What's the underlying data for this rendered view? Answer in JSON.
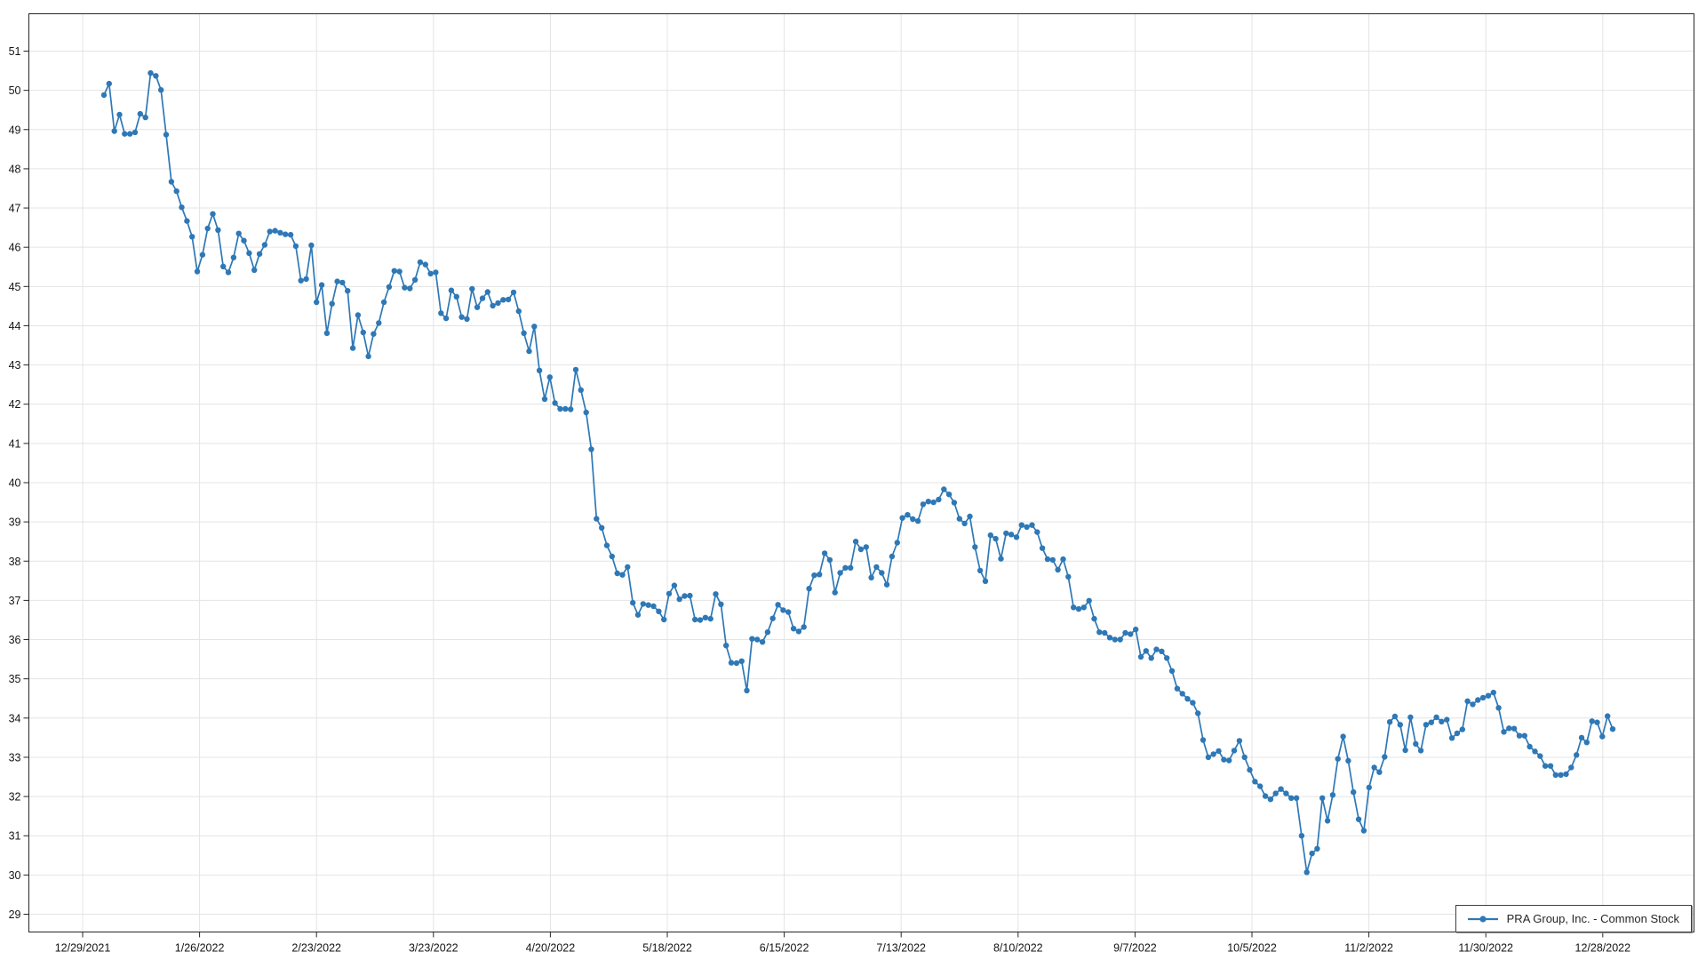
{
  "chart_data": {
    "type": "line",
    "title": "",
    "xlabel": "",
    "ylabel": "",
    "grid": true,
    "legend": {
      "label": "PRA Group, Inc. - Common Stock",
      "position": "bottom-right"
    },
    "colors": {
      "line": "#2e78b6",
      "marker": "#2e78b6",
      "grid": "#e4e4e4",
      "axis": "#262626",
      "tick_text": "#151515",
      "legend_border": "#3f3f3f",
      "legend_text": "#262626",
      "background": "#ffffff"
    },
    "x_axis": {
      "tick_labels": [
        "12/29/2021",
        "1/26/2022",
        "2/23/2022",
        "3/23/2022",
        "4/20/2022",
        "5/18/2022",
        "6/15/2022",
        "7/13/2022",
        "8/10/2022",
        "9/7/2022",
        "10/5/2022",
        "11/2/2022",
        "11/30/2022",
        "12/28/2022"
      ]
    },
    "y_axis": {
      "ticks": [
        29,
        30,
        31,
        32,
        33,
        34,
        35,
        36,
        37,
        38,
        39,
        40,
        41,
        42,
        43,
        44,
        45,
        46,
        47,
        48,
        49,
        50,
        51
      ],
      "range_min": 28.5,
      "range_max": 51.95
    },
    "series": [
      {
        "name": "PRA Group, Inc. - Common Stock",
        "frequency": "daily",
        "values": [
          49.88,
          50.17,
          48.96,
          49.38,
          48.89,
          48.89,
          48.93,
          49.4,
          49.31,
          50.44,
          50.37,
          50.01,
          48.87,
          47.67,
          47.43,
          47.02,
          46.67,
          46.27,
          45.38,
          45.81,
          46.48,
          46.85,
          46.44,
          45.51,
          45.36,
          45.74,
          46.35,
          46.17,
          45.85,
          45.42,
          45.83,
          46.06,
          46.4,
          46.42,
          46.37,
          46.33,
          46.32,
          46.03,
          45.15,
          45.19,
          46.05,
          44.6,
          45.04,
          43.81,
          44.56,
          45.13,
          45.1,
          44.89,
          43.43,
          44.27,
          43.83,
          43.22,
          43.79,
          44.07,
          44.6,
          44.99,
          45.4,
          45.38,
          44.97,
          44.95,
          45.17,
          45.62,
          45.56,
          45.33,
          45.36,
          44.32,
          44.19,
          44.9,
          44.74,
          44.22,
          44.17,
          44.94,
          44.47,
          44.7,
          44.86,
          44.51,
          44.58,
          44.66,
          44.67,
          44.85,
          44.37,
          43.81,
          43.35,
          43.98,
          42.86,
          42.13,
          42.69,
          42.03,
          41.88,
          41.88,
          41.87,
          42.88,
          42.36,
          41.79,
          40.85,
          39.08,
          38.85,
          38.4,
          38.12,
          37.69,
          37.65,
          37.85,
          36.94,
          36.63,
          36.91,
          36.88,
          36.85,
          36.72,
          36.51,
          37.17,
          37.38,
          37.03,
          37.11,
          37.12,
          36.51,
          36.5,
          36.56,
          36.53,
          37.16,
          36.9,
          35.85,
          35.41,
          35.4,
          35.45,
          34.7,
          36.02,
          36.0,
          35.94,
          36.19,
          36.54,
          36.89,
          36.75,
          36.7,
          36.28,
          36.21,
          36.32,
          37.3,
          37.64,
          37.66,
          38.2,
          38.03,
          37.2,
          37.7,
          37.83,
          37.83,
          38.5,
          38.3,
          38.36,
          37.58,
          37.85,
          37.7,
          37.4,
          38.12,
          38.47,
          39.1,
          39.18,
          39.07,
          39.02,
          39.45,
          39.52,
          39.5,
          39.57,
          39.83,
          39.7,
          39.49,
          39.08,
          38.96,
          39.14,
          38.36,
          37.76,
          37.49,
          38.66,
          38.57,
          38.06,
          38.71,
          38.68,
          38.61,
          38.92,
          38.87,
          38.92,
          38.74,
          38.33,
          38.05,
          38.03,
          37.78,
          38.05,
          37.6,
          36.82,
          36.78,
          36.82,
          36.99,
          36.53,
          36.19,
          36.17,
          36.05,
          36.0,
          36.0,
          36.17,
          36.14,
          36.26,
          35.56,
          35.71,
          35.53,
          35.75,
          35.7,
          35.53,
          35.2,
          34.75,
          34.62,
          34.49,
          34.39,
          34.12,
          33.44,
          33.0,
          33.08,
          33.16,
          32.94,
          32.92,
          33.17,
          33.42,
          33.0,
          32.68,
          32.38,
          32.26,
          32.01,
          31.93,
          32.08,
          32.19,
          32.08,
          31.96,
          31.96,
          31.0,
          30.07,
          30.55,
          30.67,
          31.96,
          31.38,
          32.04,
          32.96,
          33.53,
          32.91,
          32.11,
          31.42,
          31.13,
          32.23,
          32.74,
          32.62,
          33.01,
          33.9,
          34.04,
          33.83,
          33.18,
          34.02,
          33.34,
          33.17,
          33.83,
          33.89,
          34.02,
          33.91,
          33.96,
          33.49,
          33.61,
          33.71,
          34.43,
          34.35,
          34.46,
          34.52,
          34.57,
          34.65,
          34.26,
          33.65,
          33.74,
          33.73,
          33.55,
          33.55,
          33.27,
          33.15,
          33.03,
          32.78,
          32.78,
          32.55,
          32.55,
          32.57,
          32.74,
          33.06,
          33.5,
          33.38,
          33.92,
          33.89,
          33.53,
          34.05,
          33.72
        ]
      }
    ]
  }
}
